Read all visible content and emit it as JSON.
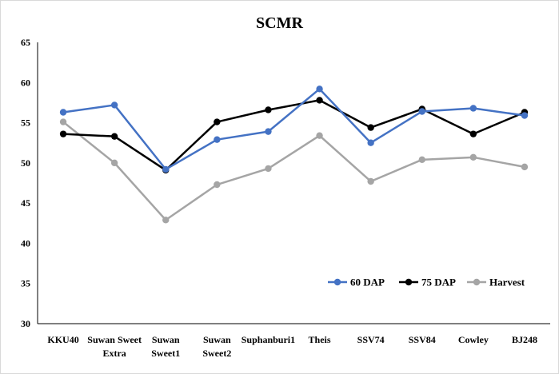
{
  "chart_data": {
    "type": "line",
    "title": "SCMR",
    "xlabel": "",
    "ylabel": "",
    "ylim": [
      30,
      65
    ],
    "ytick_step": 5,
    "grid": false,
    "legend_position": "bottom-right",
    "categories": [
      [
        "KKU40"
      ],
      [
        "Suwan Sweet",
        "Extra"
      ],
      [
        "Suwan",
        "Sweet1"
      ],
      [
        "Suwan",
        "Sweet2"
      ],
      [
        "Suphanburi1"
      ],
      [
        "Theis"
      ],
      [
        "SSV74"
      ],
      [
        "SSV84"
      ],
      [
        "Cowley"
      ],
      [
        "BJ248"
      ]
    ],
    "series": [
      {
        "name": "60 DAP",
        "color": "#4472C4",
        "values": [
          56.3,
          57.2,
          49.2,
          52.9,
          53.9,
          59.2,
          52.5,
          56.4,
          56.8,
          55.9
        ]
      },
      {
        "name": "75 DAP",
        "color": "#000000",
        "values": [
          53.6,
          53.3,
          49.1,
          55.1,
          56.6,
          57.8,
          54.4,
          56.7,
          53.6,
          56.3
        ]
      },
      {
        "name": "Harvest",
        "color": "#A5A5A5",
        "values": [
          55.1,
          50.0,
          42.9,
          47.3,
          49.3,
          53.4,
          47.7,
          50.4,
          50.7,
          49.5
        ]
      }
    ]
  }
}
